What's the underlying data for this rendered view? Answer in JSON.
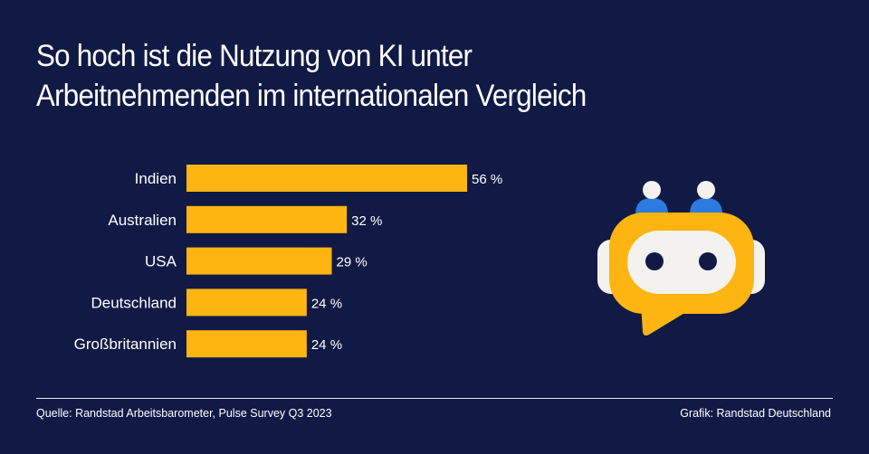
{
  "title_lines": [
    "So hoch ist die Nutzung von KI unter",
    "Arbeitnehmenden im internationalen Vergleich"
  ],
  "chart_data": {
    "type": "bar",
    "orientation": "horizontal",
    "title": "So hoch ist die Nutzung von KI unter Arbeitnehmenden im internationalen Vergleich",
    "categories": [
      "Indien",
      "Australien",
      "USA",
      "Deutschland",
      "Großbritannien"
    ],
    "values": [
      56,
      32,
      29,
      24,
      24
    ],
    "data_labels": [
      "56 %",
      "32 %",
      "29 %",
      "24 %",
      "24 %"
    ],
    "unit": "%",
    "xlabel": "",
    "ylabel": "",
    "grid": false,
    "legend": "none",
    "bar_color": "#ffb511"
  },
  "footer": {
    "source": "Quelle: Randstad Arbeitsbarometer, Pulse Survey Q3 2023",
    "credit": "Grafik: Randstad Deutschland"
  },
  "illustration": {
    "icon": "robot-chat-bubble-icon",
    "colors": {
      "body": "#ffb511",
      "face": "#f4f2ee",
      "eyes": "#111a45",
      "antenna_base": "#2d7be0",
      "antenna_tip": "#f4f2ee"
    }
  }
}
